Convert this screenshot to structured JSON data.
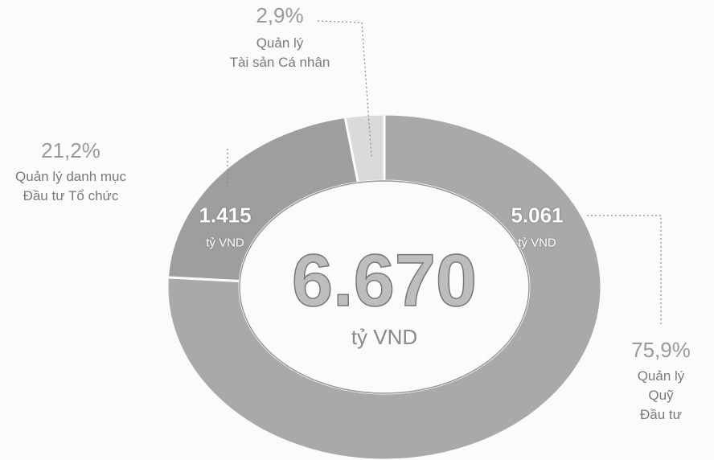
{
  "chart_data": {
    "type": "donut",
    "categories": [
      "Quản lý\nQuỹ Đầu tư",
      "Quản lý danh mục\nĐầu tư Tổ chức",
      "Quản lý\nTài sản Cá nhân"
    ],
    "values": [
      75.9,
      21.2,
      2.9
    ],
    "value_labels": [
      "75,9%",
      "21,2%",
      "2,9%"
    ],
    "amounts": [
      5061,
      1415,
      null
    ],
    "amount_labels": [
      "5.061",
      "1.415",
      null
    ],
    "amount_unit": "tỷ VND",
    "total": 6670,
    "total_label": "6.670",
    "colors": [
      "#a9a9a9",
      "#9e9e9e",
      "#dadada"
    ]
  }
}
